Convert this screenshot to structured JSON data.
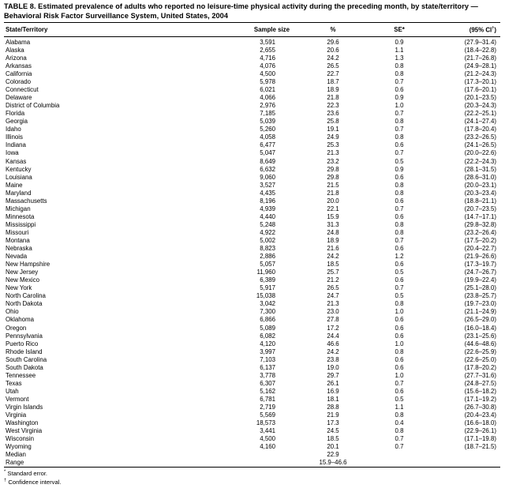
{
  "title": "TABLE 8. Estimated prevalence of adults who reported no leisure-time physical activity during the preceding month, by state/territory — Behavioral Risk Factor Surveillance System, United States, 2004",
  "columns": {
    "state": "State/Territory",
    "sample": "Sample size",
    "pct": "%",
    "se": "SE*",
    "ci_prefix": "(95% CI",
    "ci_sup": "†",
    "ci_suffix": ")"
  },
  "rows": [
    {
      "state": "Alabama",
      "sample": "3,591",
      "pct": "29.6",
      "se": "0.9",
      "ci": "(27.9–31.4)"
    },
    {
      "state": "Alaska",
      "sample": "2,655",
      "pct": "20.6",
      "se": "1.1",
      "ci": "(18.4–22.8)"
    },
    {
      "state": "Arizona",
      "sample": "4,716",
      "pct": "24.2",
      "se": "1.3",
      "ci": "(21.7–26.8)"
    },
    {
      "state": "Arkansas",
      "sample": "4,076",
      "pct": "26.5",
      "se": "0.8",
      "ci": "(24.9–28.1)"
    },
    {
      "state": "California",
      "sample": "4,500",
      "pct": "22.7",
      "se": "0.8",
      "ci": "(21.2–24.3)"
    },
    {
      "state": "Colorado",
      "sample": "5,978",
      "pct": "18.7",
      "se": "0.7",
      "ci": "(17.3–20.1)"
    },
    {
      "state": "Connecticut",
      "sample": "6,021",
      "pct": "18.9",
      "se": "0.6",
      "ci": "(17.6–20.1)"
    },
    {
      "state": "Delaware",
      "sample": "4,066",
      "pct": "21.8",
      "se": "0.9",
      "ci": "(20.1–23.5)"
    },
    {
      "state": "District of Columbia",
      "sample": "2,976",
      "pct": "22.3",
      "se": "1.0",
      "ci": "(20.3–24.3)"
    },
    {
      "state": "Florida",
      "sample": "7,185",
      "pct": "23.6",
      "se": "0.7",
      "ci": "(22.2–25.1)"
    },
    {
      "state": "Georgia",
      "sample": "5,039",
      "pct": "25.8",
      "se": "0.8",
      "ci": "(24.1–27.4)"
    },
    {
      "state": "Idaho",
      "sample": "5,260",
      "pct": "19.1",
      "se": "0.7",
      "ci": "(17.8–20.4)"
    },
    {
      "state": "Illinois",
      "sample": "4,058",
      "pct": "24.9",
      "se": "0.8",
      "ci": "(23.2–26.5)"
    },
    {
      "state": "Indiana",
      "sample": "6,477",
      "pct": "25.3",
      "se": "0.6",
      "ci": "(24.1–26.5)"
    },
    {
      "state": "Iowa",
      "sample": "5,047",
      "pct": "21.3",
      "se": "0.7",
      "ci": "(20.0–22.6)"
    },
    {
      "state": "Kansas",
      "sample": "8,649",
      "pct": "23.2",
      "se": "0.5",
      "ci": "(22.2–24.3)"
    },
    {
      "state": "Kentucky",
      "sample": "6,632",
      "pct": "29.8",
      "se": "0.9",
      "ci": "(28.1–31.5)"
    },
    {
      "state": "Louisiana",
      "sample": "9,060",
      "pct": "29.8",
      "se": "0.6",
      "ci": "(28.6–31.0)"
    },
    {
      "state": "Maine",
      "sample": "3,527",
      "pct": "21.5",
      "se": "0.8",
      "ci": "(20.0–23.1)"
    },
    {
      "state": "Maryland",
      "sample": "4,435",
      "pct": "21.8",
      "se": "0.8",
      "ci": "(20.3–23.4)"
    },
    {
      "state": "Massachusetts",
      "sample": "8,196",
      "pct": "20.0",
      "se": "0.6",
      "ci": "(18.8–21.1)"
    },
    {
      "state": "Michigan",
      "sample": "4,939",
      "pct": "22.1",
      "se": "0.7",
      "ci": "(20.7–23.5)"
    },
    {
      "state": "Minnesota",
      "sample": "4,440",
      "pct": "15.9",
      "se": "0.6",
      "ci": "(14.7–17.1)"
    },
    {
      "state": "Mississippi",
      "sample": "5,248",
      "pct": "31.3",
      "se": "0.8",
      "ci": "(29.8–32.8)"
    },
    {
      "state": "Missouri",
      "sample": "4,922",
      "pct": "24.8",
      "se": "0.8",
      "ci": "(23.2–26.4)"
    },
    {
      "state": "Montana",
      "sample": "5,002",
      "pct": "18.9",
      "se": "0.7",
      "ci": "(17.5–20.2)"
    },
    {
      "state": "Nebraska",
      "sample": "8,823",
      "pct": "21.6",
      "se": "0.6",
      "ci": "(20.4–22.7)"
    },
    {
      "state": "Nevada",
      "sample": "2,886",
      "pct": "24.2",
      "se": "1.2",
      "ci": "(21.9–26.6)"
    },
    {
      "state": "New Hampshire",
      "sample": "5,057",
      "pct": "18.5",
      "se": "0.6",
      "ci": "(17.3–19.7)"
    },
    {
      "state": "New Jersey",
      "sample": "11,960",
      "pct": "25.7",
      "se": "0.5",
      "ci": "(24.7–26.7)"
    },
    {
      "state": "New Mexico",
      "sample": "6,389",
      "pct": "21.2",
      "se": "0.6",
      "ci": "(19.9–22.4)"
    },
    {
      "state": "New York",
      "sample": "5,917",
      "pct": "26.5",
      "se": "0.7",
      "ci": "(25.1–28.0)"
    },
    {
      "state": "North Carolina",
      "sample": "15,038",
      "pct": "24.7",
      "se": "0.5",
      "ci": "(23.8–25.7)"
    },
    {
      "state": "North Dakota",
      "sample": "3,042",
      "pct": "21.3",
      "se": "0.8",
      "ci": "(19.7–23.0)"
    },
    {
      "state": "Ohio",
      "sample": "7,300",
      "pct": "23.0",
      "se": "1.0",
      "ci": "(21.1–24.9)"
    },
    {
      "state": "Oklahoma",
      "sample": "6,866",
      "pct": "27.8",
      "se": "0.6",
      "ci": "(26.5–29.0)"
    },
    {
      "state": "Oregon",
      "sample": "5,089",
      "pct": "17.2",
      "se": "0.6",
      "ci": "(16.0–18.4)"
    },
    {
      "state": "Pennsylvania",
      "sample": "6,082",
      "pct": "24.4",
      "se": "0.6",
      "ci": "(23.1–25.6)"
    },
    {
      "state": "Puerto Rico",
      "sample": "4,120",
      "pct": "46.6",
      "se": "1.0",
      "ci": "(44.6–48.6)"
    },
    {
      "state": "Rhode Island",
      "sample": "3,997",
      "pct": "24.2",
      "se": "0.8",
      "ci": "(22.6–25.9)"
    },
    {
      "state": "South Carolina",
      "sample": "7,103",
      "pct": "23.8",
      "se": "0.6",
      "ci": "(22.6–25.0)"
    },
    {
      "state": "South Dakota",
      "sample": "6,137",
      "pct": "19.0",
      "se": "0.6",
      "ci": "(17.8–20.2)"
    },
    {
      "state": "Tennessee",
      "sample": "3,778",
      "pct": "29.7",
      "se": "1.0",
      "ci": "(27.7–31.6)"
    },
    {
      "state": "Texas",
      "sample": "6,307",
      "pct": "26.1",
      "se": "0.7",
      "ci": "(24.8–27.5)"
    },
    {
      "state": "Utah",
      "sample": "5,162",
      "pct": "16.9",
      "se": "0.6",
      "ci": "(15.6–18.2)"
    },
    {
      "state": "Vermont",
      "sample": "6,781",
      "pct": "18.1",
      "se": "0.5",
      "ci": "(17.1–19.2)"
    },
    {
      "state": "Virgin Islands",
      "sample": "2,719",
      "pct": "28.8",
      "se": "1.1",
      "ci": "(26.7–30.8)"
    },
    {
      "state": "Virginia",
      "sample": "5,569",
      "pct": "21.9",
      "se": "0.8",
      "ci": "(20.4–23.4)"
    },
    {
      "state": "Washington",
      "sample": "18,573",
      "pct": "17.3",
      "se": "0.4",
      "ci": "(16.6–18.0)"
    },
    {
      "state": "West Virginia",
      "sample": "3,441",
      "pct": "24.5",
      "se": "0.8",
      "ci": "(22.9–26.1)"
    },
    {
      "state": "Wisconsin",
      "sample": "4,500",
      "pct": "18.5",
      "se": "0.7",
      "ci": "(17.1–19.8)"
    },
    {
      "state": "Wyoming",
      "sample": "4,160",
      "pct": "20.1",
      "se": "0.7",
      "ci": "(18.7–21.5)"
    }
  ],
  "summary_rows": [
    {
      "state": "Median",
      "sample": "",
      "pct": "22.9",
      "se": "",
      "ci": ""
    },
    {
      "state": "Range",
      "sample": "",
      "pct": "15.9–46.6",
      "se": "",
      "ci": ""
    }
  ],
  "footnotes": [
    {
      "marker": "*",
      "text": "Standard error."
    },
    {
      "marker": "†",
      "text": "Confidence interval."
    }
  ]
}
